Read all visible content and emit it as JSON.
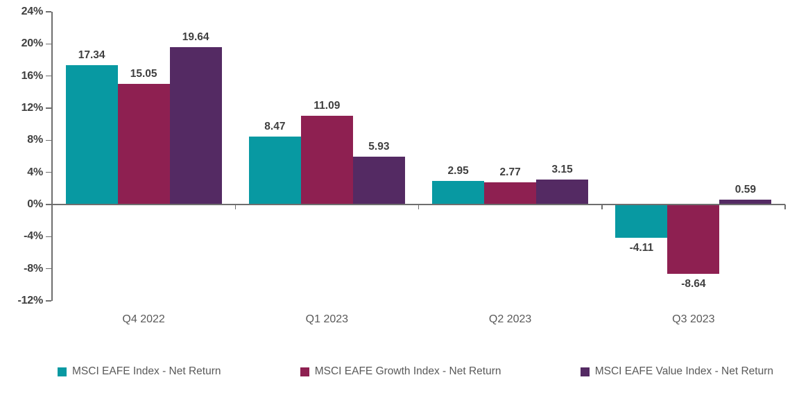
{
  "chart_data": {
    "type": "bar",
    "title": "",
    "categories": [
      "Q4 2022",
      "Q1 2023",
      "Q2 2023",
      "Q3 2023"
    ],
    "series": [
      {
        "name": "MSCI EAFE Index - Net Return",
        "color": "#0899A2",
        "values": [
          17.34,
          8.47,
          2.95,
          -4.11
        ]
      },
      {
        "name": "MSCI EAFE Growth Index - Net Return",
        "color": "#8E2051",
        "values": [
          15.05,
          11.09,
          2.77,
          -8.64
        ]
      },
      {
        "name": "MSCI EAFE Value Index - Net Return",
        "color": "#542A63",
        "values": [
          19.64,
          5.93,
          3.15,
          0.59
        ]
      }
    ],
    "yticks": [
      24,
      20,
      16,
      12,
      8,
      4,
      0,
      -4,
      -8,
      -12
    ],
    "ytick_suffix": "%",
    "ylim": [
      -12,
      24
    ],
    "grid": false,
    "value_labels": true,
    "value_label_decimals": 2,
    "legend_position": "bottom"
  },
  "colors": {
    "background": "#FFFFFF",
    "axis": "#6E6E6E",
    "ytick_label": "#3F3F3F",
    "value_label": "#3F3F3F",
    "category_label": "#595959",
    "legend_text": "#595959"
  }
}
